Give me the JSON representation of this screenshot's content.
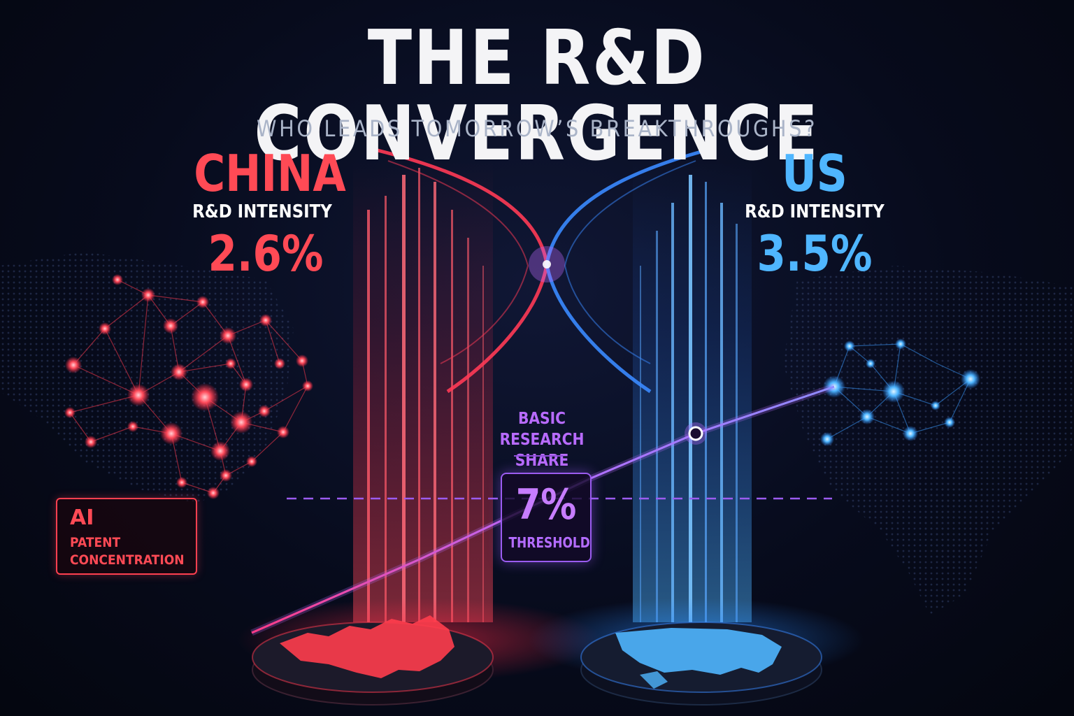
{
  "header": {
    "title": "THE R&D CONVERGENCE",
    "subtitle": "WHO LEADS TOMORROW’S BREAKTHROUGHS?"
  },
  "china": {
    "name": "CHINA",
    "metric_label": "R&D INTENSITY",
    "metric_value": "2.6%",
    "callout_title": "AI",
    "callout_text": "PATENT CONCENTRATION",
    "color": "#ff4a55"
  },
  "us": {
    "name": "US",
    "metric_label": "R&D INTENSITY",
    "metric_value": "3.5%",
    "color": "#4fb6ff"
  },
  "basic_research": {
    "label": "BASIC RESEARCH SHARE",
    "threshold_value": "7%",
    "threshold_label": "THRESHOLD",
    "color": "#a855f7"
  },
  "icons": {
    "china_platform": "china-map-icon",
    "us_platform": "us-map-icon"
  }
}
